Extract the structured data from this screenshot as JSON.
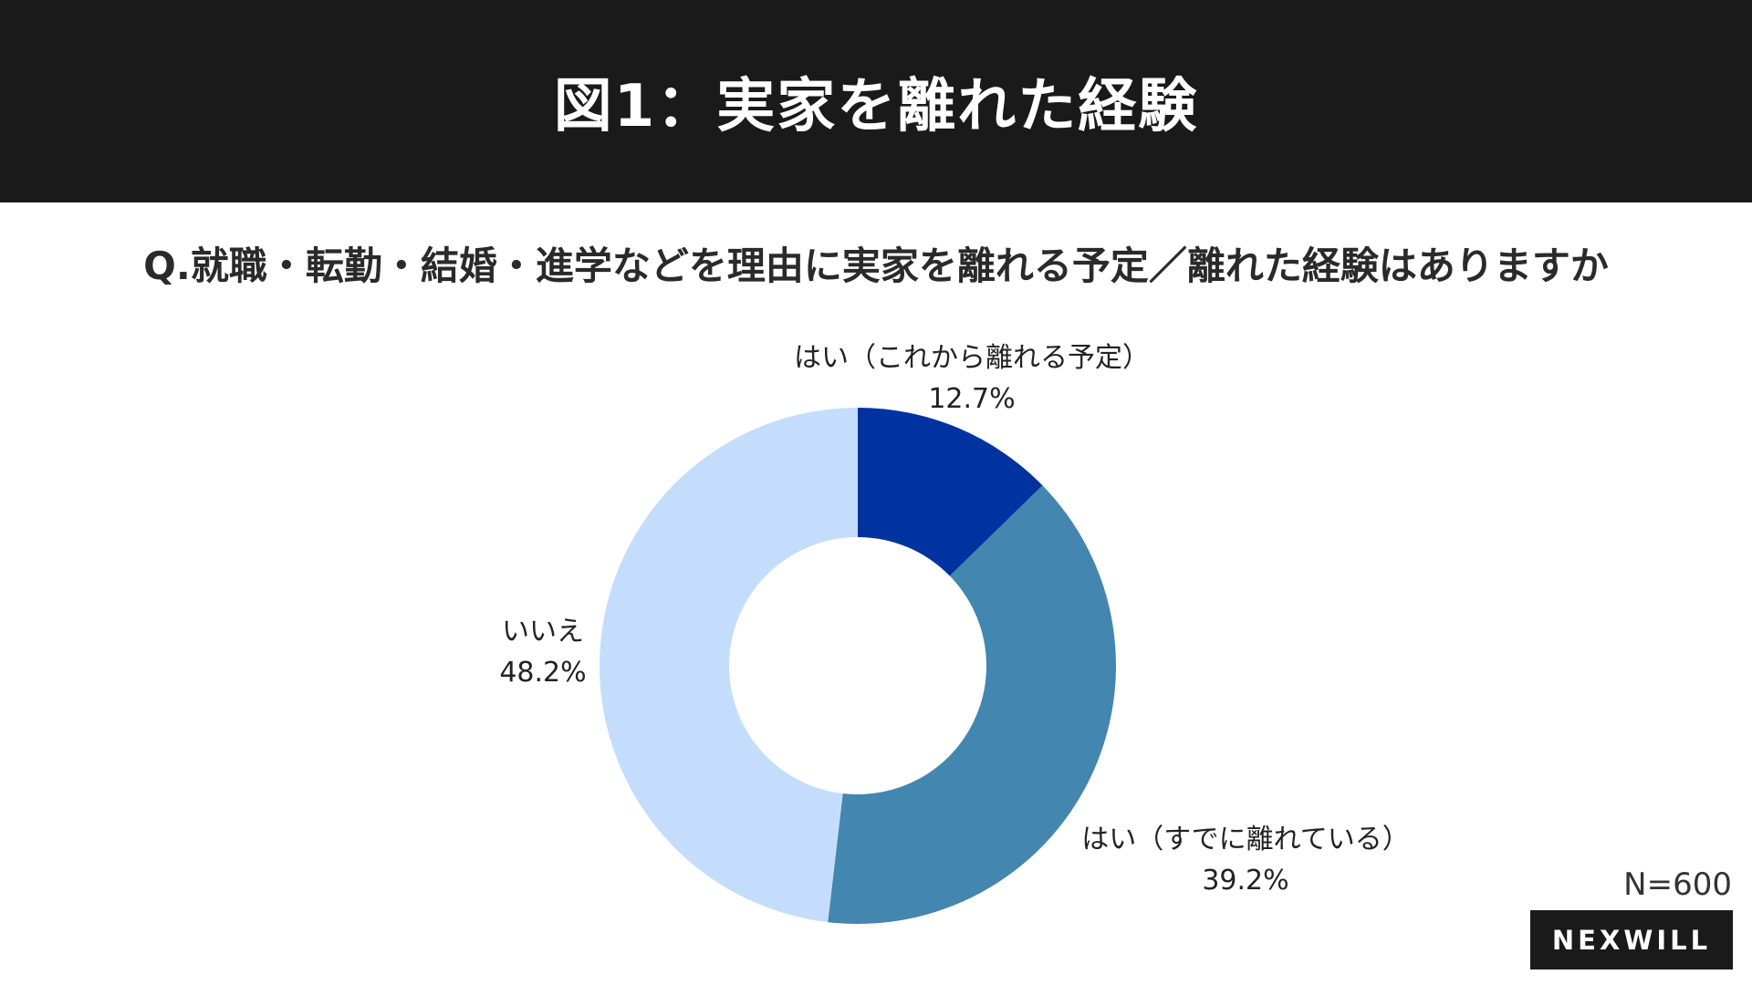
{
  "header": {
    "title": "図1：実家を離れた経験"
  },
  "question": "Q.就職・転勤・結婚・進学などを理由に実家を離れる予定／離れた経験はありますか",
  "sample_size": "N=600",
  "logo": {
    "text": "NEXWILL"
  },
  "chart_data": {
    "type": "pie",
    "donut": true,
    "title": "",
    "slices": [
      {
        "label": "はい（これから離れる予定）",
        "value": 12.7,
        "display": "12.7%",
        "color": "#0033a0"
      },
      {
        "label": "はい（すでに離れている）",
        "value": 39.2,
        "display": "39.2%",
        "color": "#4386b0"
      },
      {
        "label": "いいえ",
        "value": 48.2,
        "display": "48.2%",
        "color": "#c5ddfc"
      }
    ]
  }
}
